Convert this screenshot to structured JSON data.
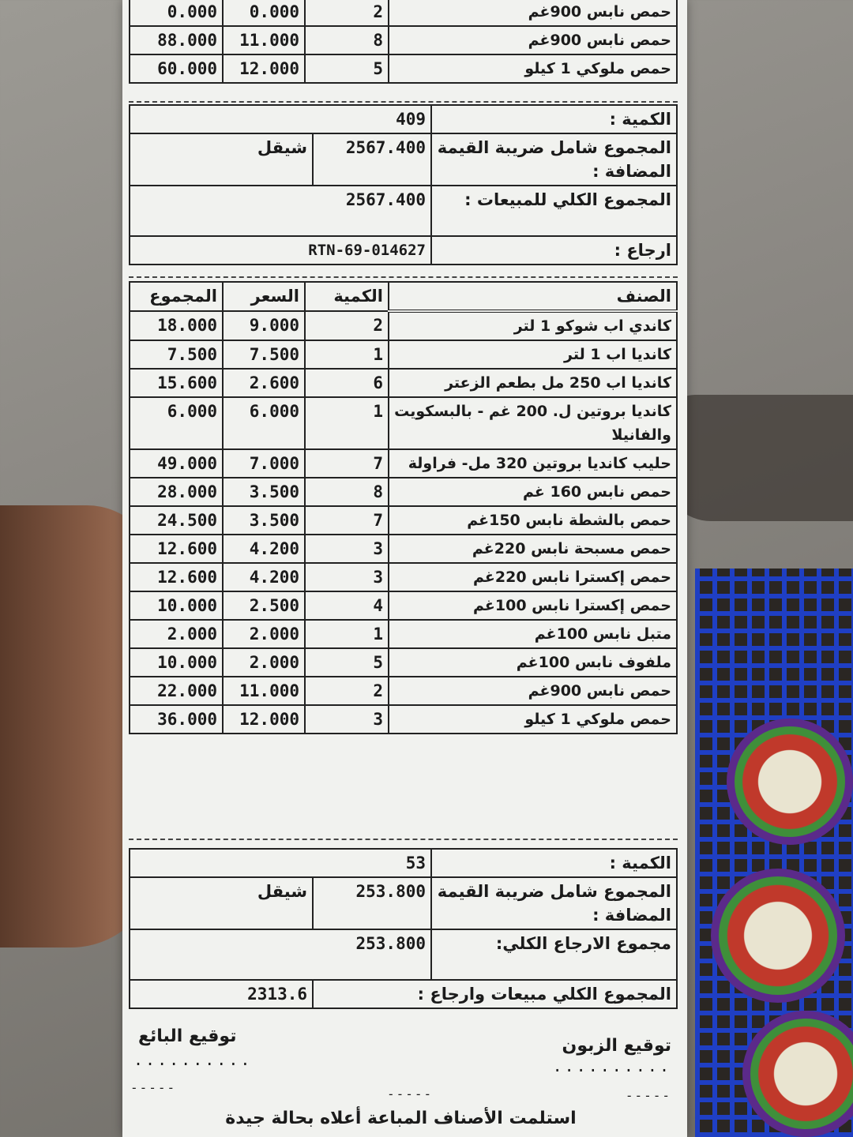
{
  "top_items": [
    {
      "name": "حمص نابس 900غم",
      "qty": "2",
      "price": "0.000",
      "total": "0.000"
    },
    {
      "name": "حمص نابس 900غم",
      "qty": "8",
      "price": "11.000",
      "total": "88.000"
    },
    {
      "name": "حمص ملوكي 1 كيلو",
      "qty": "5",
      "price": "12.000",
      "total": "60.000"
    }
  ],
  "sales_summary": {
    "qty_label": "الكمية :",
    "qty_value": "409",
    "vat_label": "المجموع شامل ضريبة القيمة المضافة :",
    "vat_value": "2567.400",
    "currency": "شيقل",
    "grand_label": "المجموع الكلي للمبيعات :",
    "grand_value": "2567.400",
    "return_label": "ارجاع :",
    "return_id": "RTN-69-014627"
  },
  "return_table": {
    "headers": {
      "item": "الصنف",
      "qty": "الكمية",
      "price": "السعر",
      "total": "المجموع"
    },
    "rows": [
      {
        "name": "كاندي اب شوكو 1 لتر",
        "qty": "2",
        "price": "9.000",
        "total": "18.000"
      },
      {
        "name": "كانديا اب 1 لتر",
        "qty": "1",
        "price": "7.500",
        "total": "7.500"
      },
      {
        "name": "كانديا اب 250 مل بطعم الزعتر",
        "qty": "6",
        "price": "2.600",
        "total": "15.600"
      },
      {
        "name": "كانديا بروتين ل. 200 غم - بالبسكويت والفانيلا",
        "qty": "1",
        "price": "6.000",
        "total": "6.000"
      },
      {
        "name": "حليب كانديا بروتين 320 مل- فراولة",
        "qty": "7",
        "price": "7.000",
        "total": "49.000"
      },
      {
        "name": "حمص نابس 160 غم",
        "qty": "8",
        "price": "3.500",
        "total": "28.000"
      },
      {
        "name": "حمص بالشطة نابس 150غم",
        "qty": "7",
        "price": "3.500",
        "total": "24.500"
      },
      {
        "name": "حمص مسبحة نابس 220غم",
        "qty": "3",
        "price": "4.200",
        "total": "12.600"
      },
      {
        "name": "حمص إكسترا نابس 220غم",
        "qty": "3",
        "price": "4.200",
        "total": "12.600"
      },
      {
        "name": "حمص إكسترا نابس 100غم",
        "qty": "4",
        "price": "2.500",
        "total": "10.000"
      },
      {
        "name": "متبل نابس 100غم",
        "qty": "1",
        "price": "2.000",
        "total": "2.000"
      },
      {
        "name": "ملفوف نابس 100غم",
        "qty": "5",
        "price": "2.000",
        "total": "10.000"
      },
      {
        "name": "حمص نابس 900غم",
        "qty": "2",
        "price": "11.000",
        "total": "22.000"
      },
      {
        "name": "حمص ملوكي 1 كيلو",
        "qty": "3",
        "price": "12.000",
        "total": "36.000"
      }
    ]
  },
  "return_summary": {
    "qty_label": "الكمية :",
    "qty_value": "53",
    "vat_label": "المجموع شامل ضريبة القيمة المضافة :",
    "vat_value": "253.800",
    "currency": "شيقل",
    "total_label": "مجموع الارجاع الكلي:",
    "total_value": "253.800",
    "net_label": "المجموع الكلي مبيعات وارجاع :",
    "net_value": "2313.6"
  },
  "signatures": {
    "seller": "توقيع البائع",
    "customer": "توقيع الزبون",
    "dots": ".........."
  },
  "footer": "استلمت الأصناف المباعة أعلاه بحالة جيدة"
}
